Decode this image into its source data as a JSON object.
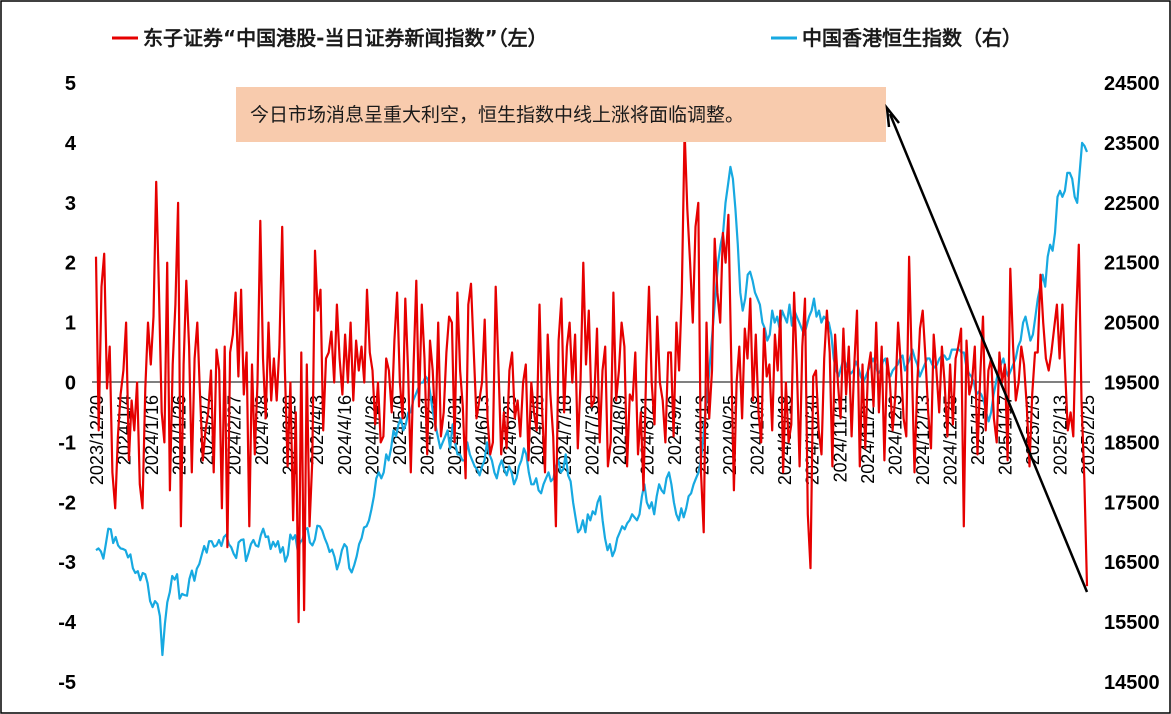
{
  "legend": {
    "left_series": "东子证券“中国港股-当日证券新闻指数”（左）",
    "right_series": "中国香港恒生指数（右）"
  },
  "annotation": {
    "text": "今日市场消息呈重大利空，恒生指数中线上涨将面临调整。"
  },
  "colors": {
    "left_series": "#e60000",
    "right_series": "#17a9e1",
    "annotation_bg": "#f8cbad",
    "arrow": "#000000",
    "border": "#000000"
  },
  "chart_data": {
    "type": "line",
    "title": "",
    "xlabel": "",
    "ylabel_left": "",
    "ylabel_right": "",
    "ylim_left": [
      -5,
      5
    ],
    "ylim_right": [
      14500,
      24500
    ],
    "y_ticks_left": [
      "5",
      "4",
      "3",
      "2",
      "1",
      "0",
      "-1",
      "-2",
      "-3",
      "-4",
      "-5"
    ],
    "y_ticks_right": [
      "24500",
      "23500",
      "22500",
      "21500",
      "20500",
      "19500",
      "18500",
      "17500",
      "16500",
      "15500",
      "14500"
    ],
    "grid": false,
    "legend_position": "top",
    "x_tick_labels": [
      "2023/12/20",
      "2024/1/4",
      "2024/1/16",
      "2024/1/26",
      "2024/2/7",
      "2024/2/27",
      "2024/3/8",
      "2024/3/20",
      "2024/4/3",
      "2024/4/16",
      "2024/4/26",
      "2024/5/9",
      "2024/5/21",
      "2024/5/31",
      "2024/6/13",
      "2024/6/25",
      "2024/7/8",
      "2024/7/18",
      "2024/7/30",
      "2024/8/9",
      "2024/8/21",
      "2024/9/2",
      "2024/9/13",
      "2024/9/25",
      "2024/10/8",
      "2024/10/18",
      "2024/10/30",
      "2024/11/11",
      "2024/11/21",
      "2024/12/3",
      "2024/12/13",
      "2024/12/25",
      "2025/1/7",
      "2025/1/17",
      "2025/2/3",
      "2025/2/13",
      "2025/2/25"
    ],
    "series": [
      {
        "name": "东子证券“中国港股-当日证券新闻指数”（左）",
        "axis": "left",
        "values": [
          2.1,
          -0.8,
          1.6,
          2.15,
          -0.1,
          0.6,
          -1.5,
          -2.1,
          -0.9,
          -0.2,
          0.2,
          1.0,
          -1.3,
          -0.3,
          -0.8,
          0.0,
          -1.7,
          -2.1,
          -0.1,
          1.0,
          0.3,
          1.1,
          3.35,
          1.5,
          -0.5,
          -1.0,
          2.0,
          -1.8,
          0.3,
          1.3,
          3.0,
          -2.4,
          0.3,
          1.7,
          0.6,
          -1.5,
          0.4,
          1.0,
          -0.2,
          -1.3,
          -0.8,
          -0.5,
          0.2,
          -1.5,
          0.55,
          0.2,
          -2.1,
          0.6,
          -2.75,
          0.5,
          0.8,
          1.5,
          0.1,
          1.55,
          -0.2,
          0.5,
          -2.4,
          0.3,
          -1.2,
          0.0,
          2.7,
          0.4,
          -0.6,
          1.0,
          -0.3,
          0.4,
          -0.3,
          0.6,
          2.6,
          0.2,
          -1.4,
          0.0,
          -2.3,
          -0.5,
          -4.0,
          0.5,
          -3.8,
          0.3,
          -2.4,
          -1.3,
          2.2,
          1.2,
          1.55,
          -0.8,
          0.4,
          0.5,
          0.85,
          0.0,
          1.3,
          0.4,
          -0.2,
          0.8,
          0.0,
          1.0,
          -0.3,
          0.7,
          0.2,
          0.6,
          0.0,
          1.55,
          0.5,
          0.2,
          -0.7,
          0.0,
          -1.0,
          -0.9,
          0.4,
          0.2,
          -0.5,
          0.7,
          1.5,
          0.0,
          -0.6,
          1.4,
          0.2,
          -1.5,
          0.3,
          1.7,
          -0.4,
          1.3,
          0.4,
          -1.2,
          0.7,
          0.2,
          -0.8,
          1.0,
          -0.9,
          -0.5,
          0.5,
          1.1,
          1.0,
          -1.0,
          1.5,
          0.2,
          -0.4,
          -1.6,
          1.3,
          1.65,
          0.5,
          -0.6,
          -0.3,
          0.0,
          1.05,
          -0.6,
          -1.2,
          -1.0,
          1.6,
          0.3,
          -1.2,
          -0.5,
          -1.1,
          0.2,
          0.5,
          -0.6,
          -0.3,
          -0.9,
          0.0,
          0.3,
          -1.3,
          0.0,
          -0.5,
          -0.8,
          1.3,
          -0.5,
          -1.5,
          0.8,
          -0.2,
          -0.9,
          -2.4,
          0.7,
          1.4,
          -0.5,
          0.6,
          1.0,
          0.0,
          0.8,
          -1.1,
          0.0,
          2.0,
          0.3,
          1.2,
          -0.4,
          -0.3,
          0.9,
          -1.0,
          0.2,
          0.6,
          -1.4,
          -1.0,
          1.5,
          -0.3,
          0.2,
          1.0,
          0.6,
          -1.4,
          -0.2,
          -0.3,
          0.5,
          -1.2,
          -0.5,
          -1.8,
          0.3,
          1.6,
          0.0,
          -0.7,
          1.1,
          0.0,
          -0.3,
          -1.0,
          0.5,
          0.5,
          -0.9,
          1.0,
          0.2,
          1.5,
          4.2,
          2.9,
          2.0,
          1.0,
          2.6,
          3.0,
          -1.5,
          -2.5,
          1.0,
          -0.6,
          0.2,
          2.4,
          1.5,
          1.0,
          2.5,
          2.0,
          2.8,
          0.5,
          -1.8,
          0.0,
          0.6,
          -0.6,
          0.9,
          0.4,
          1.4,
          -0.3,
          0.8,
          -0.5,
          -1.0,
          0.9,
          0.1,
          0.3,
          -0.8,
          0.8,
          0.2,
          1.2,
          -1.5,
          0.0,
          -1.0,
          -0.7,
          1.5,
          0.3,
          -1.4,
          0.6,
          1.4,
          -2.2,
          -3.1,
          0.1,
          0.2,
          -0.8,
          -1.2,
          0.4,
          1.2,
          0.5,
          -1.4,
          0.8,
          0.0,
          -0.6,
          0.9,
          -0.2,
          0.6,
          -0.9,
          0.3,
          1.2,
          -1.4,
          0.3,
          -1.1,
          0.2,
          0.5,
          -0.4,
          1.0,
          -0.5,
          0.6,
          -1.3,
          0.4,
          0.0,
          -0.8,
          -0.2,
          1.0,
          0.3,
          -0.6,
          -0.9,
          2.1,
          0.3,
          -1.5,
          0.0,
          0.9,
          1.2,
          0.4,
          -0.5,
          -1.1,
          0.8,
          0.2,
          -0.5,
          0.6,
          0.0,
          -0.9,
          0.3,
          -0.7,
          0.4,
          0.6,
          0.9,
          -2.4,
          0.7,
          -0.2,
          0.0,
          0.6,
          -1.2,
          0.1,
          1.1,
          -0.8,
          0.2,
          0.4,
          -0.6,
          -1.0,
          0.5,
          0.0,
          0.3,
          -1.3,
          1.9,
          0.6,
          -0.3,
          0.0,
          0.6,
          0.3,
          -0.4,
          -1.4,
          -0.2,
          0.5,
          0.5,
          1.8,
          1.0,
          0.4,
          0.2,
          0.5,
          0.9,
          1.3,
          0.4,
          1.3,
          0.2,
          -0.8,
          -0.5,
          -0.9,
          1.0,
          2.3,
          -0.3,
          -1.6,
          -3.4
        ]
      },
      {
        "name": "中国香港恒生指数（右）",
        "axis": "right",
        "values": [
          16700,
          16730,
          16680,
          16560,
          16800,
          17060,
          17050,
          16820,
          16920,
          16780,
          16730,
          16720,
          16700,
          16580,
          16630,
          16400,
          16320,
          16350,
          16200,
          16320,
          16300,
          16150,
          15850,
          15750,
          15850,
          15800,
          15600,
          14950,
          15470,
          15830,
          16000,
          16270,
          16210,
          16300,
          15890,
          15970,
          15950,
          15940,
          16220,
          16360,
          16190,
          16390,
          16470,
          16620,
          16770,
          16660,
          16850,
          16850,
          16760,
          16780,
          16870,
          16770,
          16920,
          16960,
          16800,
          16750,
          16640,
          16570,
          16830,
          16870,
          16880,
          16520,
          16650,
          16800,
          16870,
          16780,
          16760,
          16950,
          17060,
          16920,
          16930,
          16720,
          16840,
          16760,
          16850,
          16660,
          16750,
          16510,
          16620,
          16960,
          16880,
          16950,
          16700,
          16830,
          16880,
          17050,
          17070,
          16830,
          16780,
          16880,
          17110,
          17100,
          17030,
          16900,
          16800,
          16670,
          16710,
          16590,
          16380,
          16500,
          16700,
          16800,
          16750,
          16400,
          16330,
          16450,
          16600,
          16800,
          16900,
          17080,
          17100,
          17200,
          17380,
          17600,
          17900,
          18000,
          17900,
          18000,
          18300,
          18200,
          18400,
          18700,
          18600,
          18800,
          18900,
          18700,
          18800,
          19000,
          19000,
          19200,
          19300,
          19400,
          19500,
          19500,
          19600,
          19550,
          19300,
          19000,
          18800,
          18600,
          18400,
          18500,
          18600,
          18700,
          18400,
          18800,
          18500,
          18300,
          18300,
          18200,
          18200,
          18500,
          18300,
          18200,
          18100,
          18050,
          17950,
          18100,
          18200,
          18500,
          18300,
          18200,
          18000,
          17900,
          18100,
          18200,
          18050,
          17950,
          18100,
          18000,
          17800,
          17900,
          18100,
          18200,
          18400,
          18300,
          18000,
          17800,
          17800,
          17900,
          17700,
          17650,
          17800,
          17900,
          18000,
          17850,
          17900,
          18100,
          18200,
          18000,
          18050,
          18300,
          17950,
          17850,
          17500,
          17250,
          17000,
          17050,
          17200,
          17000,
          17300,
          17200,
          17350,
          17300,
          17500,
          17600,
          17200,
          16900,
          16700,
          16800,
          16600,
          16700,
          16900,
          17000,
          17100,
          17050,
          17150,
          17200,
          17300,
          17250,
          17200,
          17300,
          17600,
          17800,
          17500,
          17400,
          17500,
          17300,
          17600,
          17800,
          17700,
          17650,
          17900,
          18000,
          17800,
          17500,
          17300,
          17200,
          17400,
          17250,
          17400,
          17600,
          17650,
          17800,
          17900,
          18000,
          18200,
          18600,
          19100,
          19500,
          20000,
          20500,
          21000,
          21500,
          21800,
          22000,
          22500,
          22800,
          23100,
          22900,
          22400,
          21800,
          21000,
          20700,
          20900,
          21300,
          21350,
          21200,
          21000,
          20900,
          20800,
          20500,
          20400,
          20200,
          20300,
          20700,
          20500,
          20600,
          20400,
          20700,
          20600,
          20500,
          20800,
          20450,
          20700,
          20600,
          20500,
          20400,
          20300,
          20450,
          20600,
          20700,
          20900,
          20600,
          20700,
          20500,
          20600,
          20550,
          20500,
          20300,
          19900,
          19700,
          19600,
          19750,
          19900,
          19800,
          19700,
          19650,
          19700,
          19850,
          19750,
          19600,
          19500,
          19600,
          19700,
          19800,
          19900,
          19800,
          19650,
          19700,
          19850,
          19900,
          19700,
          19600,
          19700,
          19750,
          19800,
          19900,
          19950,
          19700,
          19800,
          19900,
          20050,
          19900,
          19800,
          19600,
          19700,
          19800,
          19900,
          19900,
          19800,
          19750,
          19800,
          19900,
          19950,
          19950,
          19880,
          19900,
          20050,
          20050,
          20050,
          20050,
          20000,
          20000,
          19750,
          19650,
          19600,
          19500,
          19300,
          19350,
          19300,
          19200,
          19000,
          18850,
          19000,
          19300,
          19500,
          19700,
          19800,
          19900,
          19700,
          19600,
          19700,
          19800,
          19900,
          20100,
          20200,
          20500,
          20600,
          20400,
          20200,
          20300,
          20600,
          20900,
          21100,
          21300,
          21100,
          21600,
          21800,
          21700,
          22000,
          22600,
          22700,
          22600,
          22700,
          23000,
          23000,
          22900,
          22600,
          22500,
          23000,
          23500,
          23450,
          23350
        ]
      }
    ]
  }
}
